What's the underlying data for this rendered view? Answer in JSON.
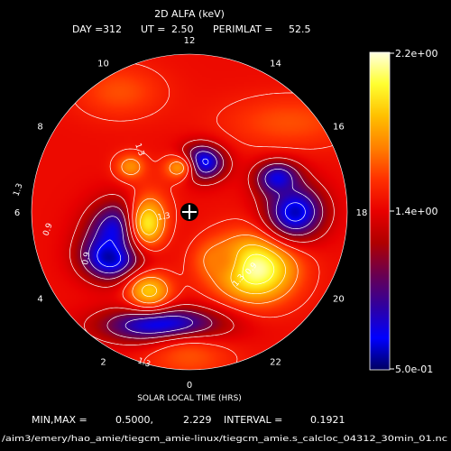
{
  "chart_data": {
    "type": "heatmap",
    "projection": "polar",
    "title": "2D ALFA (keV)",
    "subtitle": {
      "day_label": "DAY =",
      "day": "312",
      "ut_label": "UT =",
      "ut": "2.50",
      "perimlat_label": "PERIMLAT =",
      "perimlat": "52.5"
    },
    "xlabel": "SOLAR LOCAL TIME (HRS)",
    "hour_ticks": [
      "12",
      "10",
      "8",
      "6",
      "4",
      "2",
      "0",
      "22",
      "20",
      "18",
      "16",
      "14"
    ],
    "colorbar": {
      "max_label": "2.2e+00",
      "mid_label": "1.4e+00",
      "min_label": "5.0e-01"
    },
    "colorbar_stops": [
      "#ffffe0",
      "#ffff30",
      "#ffc000",
      "#ff8000",
      "#ff3000",
      "#e80000",
      "#b00000",
      "#6a0050",
      "#3000a0",
      "#0000ff",
      "#000060"
    ],
    "contour_labels": [
      "1.3",
      "1.3",
      "1.3",
      "1.3",
      "1.3",
      "0.9",
      "0.9",
      "0.9"
    ],
    "contour_interval": 0.1921,
    "min": 0.5,
    "max": 2.229,
    "background_value": 1.4,
    "blobs": [
      {
        "mlt": 20.7,
        "colat": 0.55,
        "sx": 0.18,
        "sy": 0.15,
        "v": 2.2
      },
      {
        "mlt": 4.9,
        "colat": 0.42,
        "sx": 0.15,
        "sy": 0.13,
        "v": 0.5
      },
      {
        "mlt": 4.0,
        "colat": 0.57,
        "sx": 0.13,
        "sy": 0.1,
        "v": 0.55
      },
      {
        "mlt": 18.0,
        "colat": 0.67,
        "sx": 0.13,
        "sy": 0.12,
        "v": 0.6
      },
      {
        "mlt": 16.6,
        "colat": 0.6,
        "sx": 0.1,
        "sy": 0.08,
        "v": 0.7
      },
      {
        "mlt": 0.9,
        "colat": 0.74,
        "sx": 0.26,
        "sy": 0.08,
        "v": 0.6
      },
      {
        "mlt": 5.0,
        "colat": 0.27,
        "sx": 0.1,
        "sy": 0.14,
        "v": 2.0
      },
      {
        "mlt": 1.8,
        "colat": 0.56,
        "sx": 0.1,
        "sy": 0.08,
        "v": 1.9
      },
      {
        "mlt": 13.0,
        "colat": 0.33,
        "sx": 0.1,
        "sy": 0.08,
        "v": 0.6
      },
      {
        "mlt": 11.0,
        "colat": 0.29,
        "sx": 0.07,
        "sy": 0.06,
        "v": 1.75
      },
      {
        "mlt": 8.5,
        "colat": 0.47,
        "sx": 0.07,
        "sy": 0.06,
        "v": 1.75
      },
      {
        "mlt": 22.0,
        "colat": 0.35,
        "sx": 0.1,
        "sy": 0.09,
        "v": 1.7
      },
      {
        "mlt": 15.2,
        "colat": 0.85,
        "sx": 0.3,
        "sy": 0.12,
        "v": 1.6
      },
      {
        "mlt": 10.0,
        "colat": 0.88,
        "sx": 0.2,
        "sy": 0.12,
        "v": 1.6
      },
      {
        "mlt": 0.0,
        "colat": 0.92,
        "sx": 0.2,
        "sy": 0.1,
        "v": 1.6
      }
    ]
  },
  "footer": {
    "minmax_label": "MIN,MAX =",
    "min": "0.5000,",
    "max": "2.229",
    "interval_label": "INTERVAL =",
    "interval": "0.1921",
    "path": "/aim3/emery/hao_amie/tiegcm_amie-linux/tiegcm_amie.s_calcloc_04312_30min_01.nc"
  }
}
